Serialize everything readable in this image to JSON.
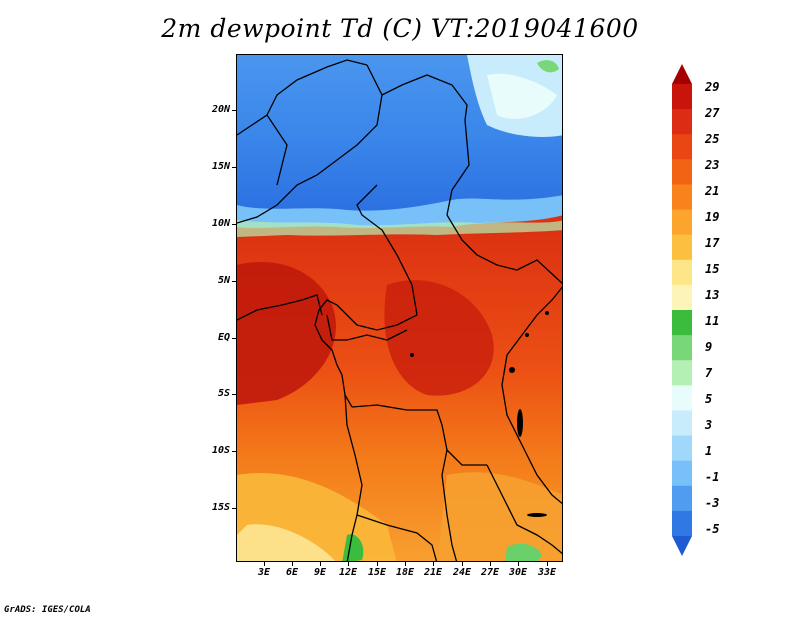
{
  "title": "2m dewpoint Td (C) VT:2019041600",
  "credit": "GrADS: IGES/COLA",
  "latitude_labels": [
    "20N",
    "15N",
    "10N",
    "5N",
    "EQ",
    "5S",
    "10S",
    "15S"
  ],
  "longitude_labels": [
    "3E",
    "6E",
    "9E",
    "12E",
    "15E",
    "18E",
    "21E",
    "24E",
    "27E",
    "30E",
    "33E"
  ],
  "colorbar": {
    "labels": [
      "29",
      "27",
      "25",
      "23",
      "21",
      "19",
      "17",
      "15",
      "13",
      "11",
      "9",
      "7",
      "5",
      "3",
      "1",
      "-1",
      "-3",
      "-5"
    ],
    "colors": [
      "#a50000",
      "#c8140a",
      "#dc2d14",
      "#ea4614",
      "#f26414",
      "#f8821c",
      "#fca42c",
      "#fcc040",
      "#fde688",
      "#fdf4b8",
      "#3cbc3c",
      "#78d878",
      "#b4f0b4",
      "#e8fcfc",
      "#c8ecfc",
      "#a0d8fc",
      "#78c0f8",
      "#509cf0",
      "#3078e4",
      "#1e5ad2"
    ]
  }
}
